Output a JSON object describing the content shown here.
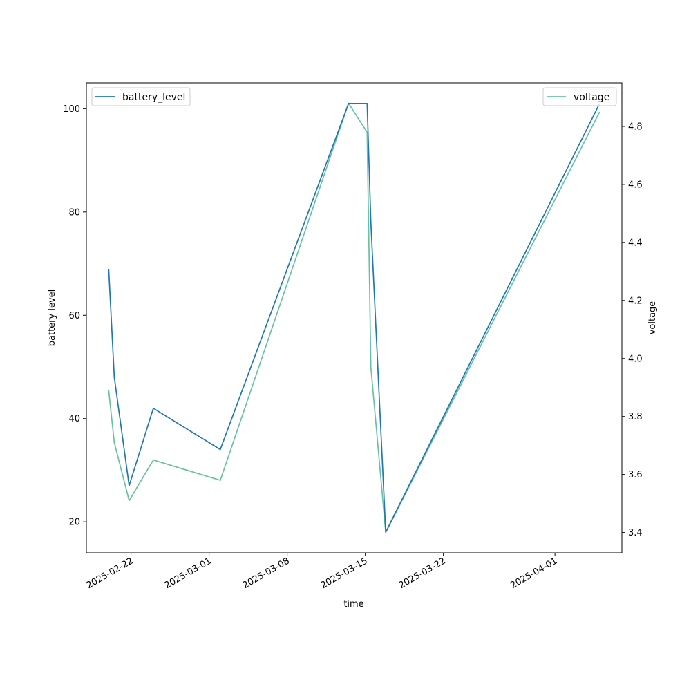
{
  "chart_data": {
    "type": "line",
    "xlabel": "time",
    "x_ticks": [
      "2025-02-22",
      "2025-03-01",
      "2025-03-08",
      "2025-03-15",
      "2025-03-22",
      "2025-04-01"
    ],
    "x_range": [
      "2025-02-18T00:00",
      "2025-04-07T00:00"
    ],
    "left_axis": {
      "label": "battery level",
      "ylim": [
        14,
        105
      ],
      "ticks": [
        20,
        40,
        60,
        80,
        100
      ]
    },
    "right_axis": {
      "label": "voltage",
      "ylim": [
        3.33,
        4.95
      ],
      "ticks": [
        "3.4",
        "3.6",
        "3.8",
        "4.0",
        "4.2",
        "4.4",
        "4.6",
        "4.8"
      ]
    },
    "series": [
      {
        "name": "battery_level",
        "axis": "left",
        "color": "#1f77b4",
        "legend_position": "upper-left",
        "points": [
          [
            "2025-02-20T00:00",
            69
          ],
          [
            "2025-02-20T12:00",
            48
          ],
          [
            "2025-02-21T20:00",
            27
          ],
          [
            "2025-02-24T00:00",
            42
          ],
          [
            "2025-03-02T00:00",
            34
          ],
          [
            "2025-03-13T12:00",
            101
          ],
          [
            "2025-03-15T04:00",
            101
          ],
          [
            "2025-03-15T12:00",
            78
          ],
          [
            "2025-03-16T20:00",
            18
          ],
          [
            "2025-04-05T00:00",
            101
          ]
        ]
      },
      {
        "name": "voltage",
        "axis": "right",
        "color": "#66c2a5",
        "legend_position": "upper-right",
        "points": [
          [
            "2025-02-20T00:00",
            3.89
          ],
          [
            "2025-02-20T12:00",
            3.71
          ],
          [
            "2025-02-21T20:00",
            3.51
          ],
          [
            "2025-02-24T00:00",
            3.65
          ],
          [
            "2025-03-02T00:00",
            3.58
          ],
          [
            "2025-03-13T12:00",
            4.88
          ],
          [
            "2025-03-15T04:00",
            4.78
          ],
          [
            "2025-03-15T12:00",
            3.97
          ],
          [
            "2025-03-16T20:00",
            3.4
          ],
          [
            "2025-04-05T00:00",
            4.85
          ]
        ]
      }
    ]
  }
}
